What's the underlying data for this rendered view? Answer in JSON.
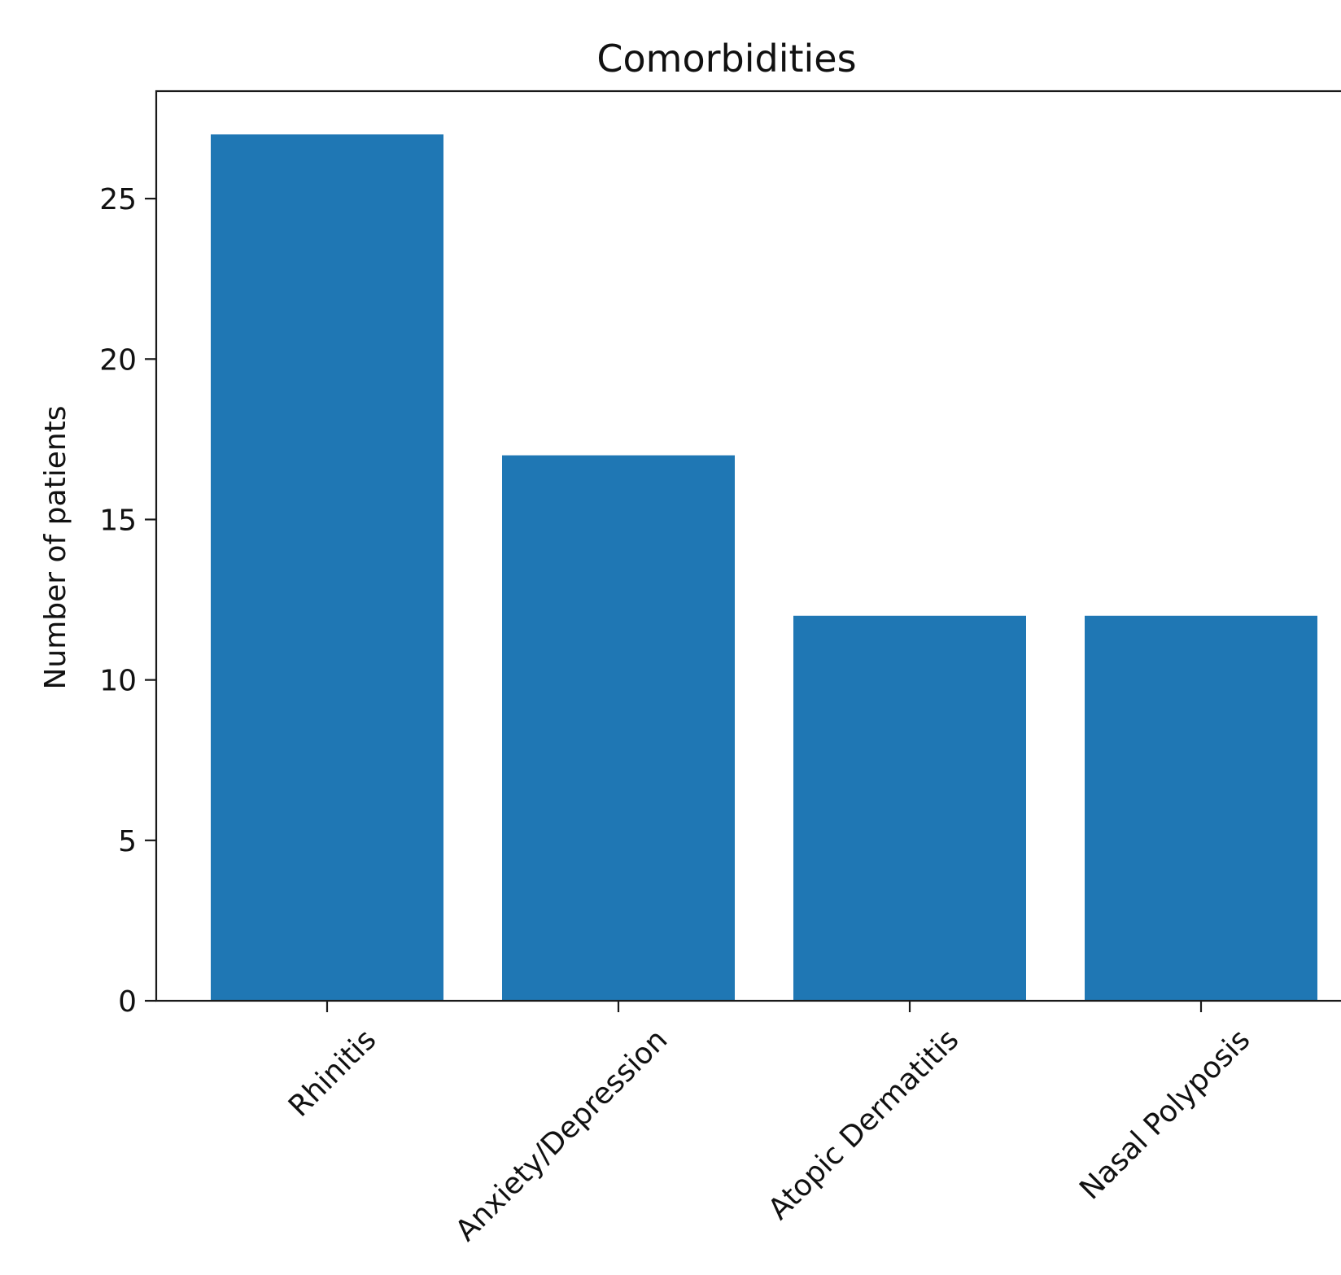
{
  "chart_data": {
    "type": "bar",
    "title": "Comorbidities",
    "xlabel": "",
    "ylabel": "Number of patients",
    "categories": [
      "Rhinitis",
      "Anxiety/Depression",
      "Atopic Dermatitis",
      "Nasal Polyposis"
    ],
    "values": [
      27,
      17,
      12,
      12
    ],
    "ylim": [
      0,
      28.35
    ],
    "yticks": [
      "0",
      "5",
      "10",
      "15",
      "20",
      "25"
    ],
    "grid": false,
    "legend": "none",
    "bar_color": "#1f77b4",
    "xtick_rotation": "45 degrees"
  }
}
